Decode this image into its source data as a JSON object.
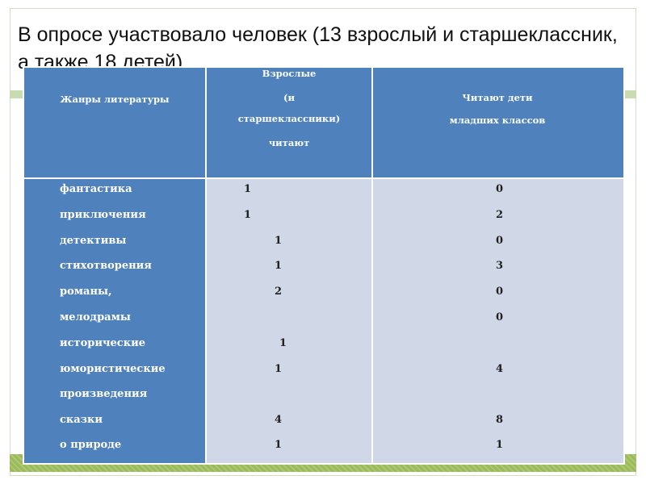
{
  "title": "В опросе участвовало   человек (13 взрослый и старшеклассник, а также 18 детей).",
  "table": {
    "headers": {
      "genre": "Жанры литературы",
      "adults_line1": "Взрослые",
      "adults_line2": "(и",
      "adults_line3": "старшеклассники)",
      "adults_line4": "читают",
      "kids_line1": "Читают дети",
      "kids_line2": "младших классов"
    },
    "genres": [
      "фантастика",
      "приключения",
      "детективы",
      "стихотворения",
      "романы,",
      "мелодрамы",
      "исторические",
      "юмористические",
      "произведения",
      "сказки",
      " о природе"
    ],
    "adults": [
      "1",
      "1",
      "1",
      "1",
      "2",
      "1",
      "1",
      "4",
      "1"
    ],
    "kids": [
      "0",
      "2",
      "0",
      "3",
      "0",
      "0",
      "4",
      "8",
      "1"
    ]
  },
  "colors": {
    "header_bg": "#4f81bd",
    "body_bg": "#d0d8e8",
    "band_green": "#9bbb59"
  }
}
